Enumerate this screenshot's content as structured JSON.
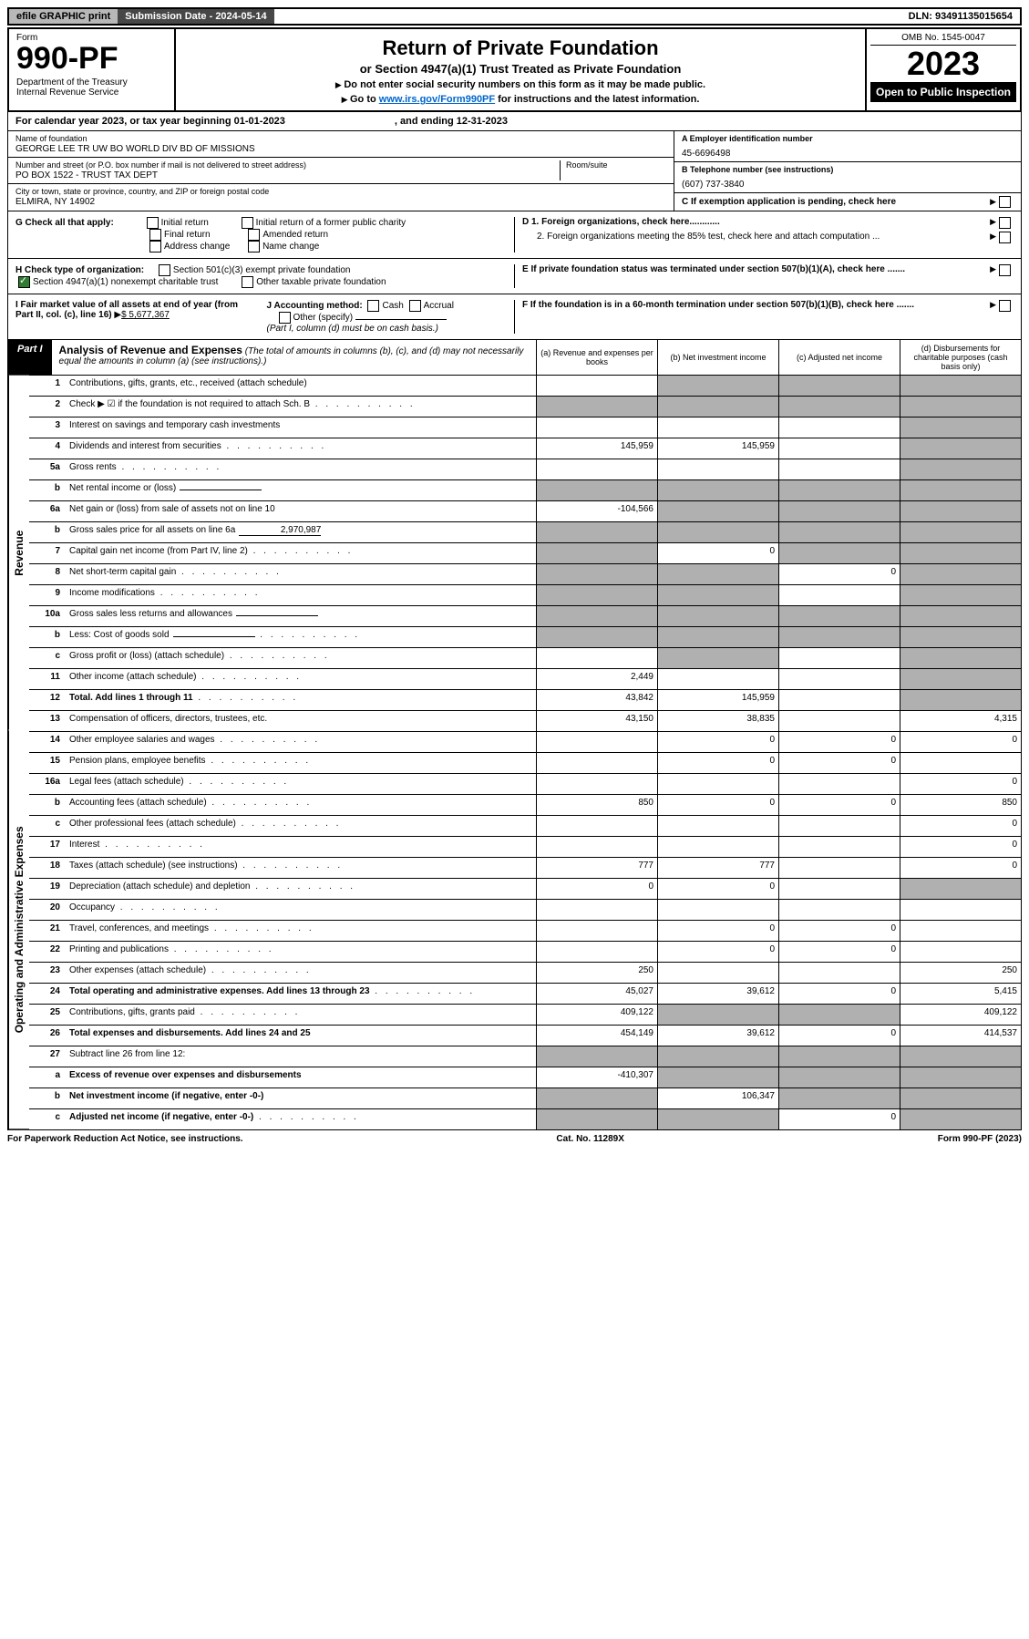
{
  "topbar": {
    "efile": "efile GRAPHIC print",
    "sub": "Submission Date - 2024-05-14",
    "dln": "DLN: 93491135015654"
  },
  "hdr": {
    "form": "Form",
    "num": "990-PF",
    "dept": "Department of the Treasury\nInternal Revenue Service",
    "title": "Return of Private Foundation",
    "sub": "or Section 4947(a)(1) Trust Treated as Private Foundation",
    "n1": "Do not enter social security numbers on this form as it may be made public.",
    "n2a": "Go to ",
    "n2l": "www.irs.gov/Form990PF",
    "n2b": " for instructions and the latest information.",
    "omb": "OMB No. 1545-0047",
    "yr": "2023",
    "insp": "Open to Public Inspection"
  },
  "cal": {
    "a": "For calendar year 2023, or tax year beginning 01-01-2023",
    "b": ", and ending 12-31-2023"
  },
  "name": {
    "lbl": "Name of foundation",
    "val": "GEORGE LEE TR UW BO WORLD DIV BD OF MISSIONS"
  },
  "addr": {
    "lbl": "Number and street (or P.O. box number if mail is not delivered to street address)",
    "room": "Room/suite",
    "val": "PO BOX 1522 - TRUST TAX DEPT"
  },
  "city": {
    "lbl": "City or town, state or province, country, and ZIP or foreign postal code",
    "val": "ELMIRA, NY  14902"
  },
  "A": {
    "lbl": "A Employer identification number",
    "val": "45-6696498"
  },
  "B": {
    "lbl": "B Telephone number (see instructions)",
    "val": "(607) 737-3840"
  },
  "C": "C If exemption application is pending, check here",
  "G": {
    "lbl": "G Check all that apply:",
    "o": [
      "Initial return",
      "Final return",
      "Address change",
      "Initial return of a former public charity",
      "Amended return",
      "Name change"
    ]
  },
  "D": {
    "d1": "D 1. Foreign organizations, check here............",
    "d2": "2. Foreign organizations meeting the 85% test, check here and attach computation ..."
  },
  "H": {
    "lbl": "H Check type of organization:",
    "o1": "Section 501(c)(3) exempt private foundation",
    "o2": "Section 4947(a)(1) nonexempt charitable trust",
    "o3": "Other taxable private foundation"
  },
  "E": "E If private foundation status was terminated under section 507(b)(1)(A), check here .......",
  "I": {
    "lbl": "I Fair market value of all assets at end of year (from Part II, col. (c), line 16)",
    "val": "$  5,677,367"
  },
  "J": {
    "lbl": "J Accounting method:",
    "o": [
      "Cash",
      "Accrual",
      "Other (specify)"
    ],
    "note": "(Part I, column (d) must be on cash basis.)"
  },
  "F": "F  If the foundation is in a 60-month termination under section 507(b)(1)(B), check here .......",
  "part": {
    "tag": "Part I",
    "tit": "Analysis of Revenue and Expenses",
    "note": "(The total of amounts in columns (b), (c), and (d) may not necessarily equal the amounts in column (a) (see instructions).)",
    "ca": "(a)   Revenue and expenses per books",
    "cb": "(b)   Net investment income",
    "cc": "(c)   Adjusted net income",
    "cd": "(d)   Disbursements for charitable purposes (cash basis only)"
  },
  "side": {
    "rev": "Revenue",
    "exp": "Operating and Administrative Expenses"
  },
  "rows": [
    {
      "n": "1",
      "d": "Contributions, gifts, grants, etc., received (attach schedule)",
      "a": "",
      "b": "g",
      "c": "g",
      "dd": "g"
    },
    {
      "n": "2",
      "d": "Check ▶ ☑ if the foundation is not required to attach Sch. B",
      "dots": 1,
      "a": "g",
      "b": "g",
      "c": "g",
      "dd": "g"
    },
    {
      "n": "3",
      "d": "Interest on savings and temporary cash investments",
      "a": "",
      "b": "",
      "c": "",
      "dd": "g"
    },
    {
      "n": "4",
      "d": "Dividends and interest from securities",
      "dots": 1,
      "a": "145,959",
      "b": "145,959",
      "c": "",
      "dd": "g"
    },
    {
      "n": "5a",
      "d": "Gross rents",
      "dots": 1,
      "a": "",
      "b": "",
      "c": "",
      "dd": "g"
    },
    {
      "n": "b",
      "d": "Net rental income or (loss)",
      "a": "g",
      "b": "g",
      "c": "g",
      "dd": "g",
      "inline": 1
    },
    {
      "n": "6a",
      "d": "Net gain or (loss) from sale of assets not on line 10",
      "a": "-104,566",
      "b": "g",
      "c": "g",
      "dd": "g"
    },
    {
      "n": "b",
      "d": "Gross sales price for all assets on line 6a",
      "inline": 1,
      "iv": "2,970,987",
      "a": "g",
      "b": "g",
      "c": "g",
      "dd": "g"
    },
    {
      "n": "7",
      "d": "Capital gain net income (from Part IV, line 2)",
      "dots": 1,
      "a": "g",
      "b": "0",
      "c": "g",
      "dd": "g"
    },
    {
      "n": "8",
      "d": "Net short-term capital gain",
      "dots": 1,
      "a": "g",
      "b": "g",
      "c": "0",
      "dd": "g"
    },
    {
      "n": "9",
      "d": "Income modifications",
      "dots": 1,
      "a": "g",
      "b": "g",
      "c": "",
      "dd": "g"
    },
    {
      "n": "10a",
      "d": "Gross sales less returns and allowances",
      "inline": 1,
      "a": "g",
      "b": "g",
      "c": "g",
      "dd": "g"
    },
    {
      "n": "b",
      "d": "Less: Cost of goods sold",
      "dots": 1,
      "inline": 1,
      "a": "g",
      "b": "g",
      "c": "g",
      "dd": "g"
    },
    {
      "n": "c",
      "d": "Gross profit or (loss) (attach schedule)",
      "dots": 1,
      "a": "",
      "b": "g",
      "c": "",
      "dd": "g"
    },
    {
      "n": "11",
      "d": "Other income (attach schedule)",
      "dots": 1,
      "a": "2,449",
      "b": "",
      "c": "",
      "dd": "g"
    },
    {
      "n": "12",
      "d": "Total. Add lines 1 through 11",
      "dots": 1,
      "bold": 1,
      "a": "43,842",
      "b": "145,959",
      "c": "",
      "dd": "g"
    },
    {
      "n": "13",
      "d": "Compensation of officers, directors, trustees, etc.",
      "a": "43,150",
      "b": "38,835",
      "c": "",
      "dd": "4,315"
    },
    {
      "n": "14",
      "d": "Other employee salaries and wages",
      "dots": 1,
      "a": "",
      "b": "0",
      "c": "0",
      "dd": "0"
    },
    {
      "n": "15",
      "d": "Pension plans, employee benefits",
      "dots": 1,
      "a": "",
      "b": "0",
      "c": "0",
      "dd": ""
    },
    {
      "n": "16a",
      "d": "Legal fees (attach schedule)",
      "dots": 1,
      "a": "",
      "b": "",
      "c": "",
      "dd": "0"
    },
    {
      "n": "b",
      "d": "Accounting fees (attach schedule)",
      "dots": 1,
      "a": "850",
      "b": "0",
      "c": "0",
      "dd": "850"
    },
    {
      "n": "c",
      "d": "Other professional fees (attach schedule)",
      "dots": 1,
      "a": "",
      "b": "",
      "c": "",
      "dd": "0"
    },
    {
      "n": "17",
      "d": "Interest",
      "dots": 1,
      "a": "",
      "b": "",
      "c": "",
      "dd": "0"
    },
    {
      "n": "18",
      "d": "Taxes (attach schedule) (see instructions)",
      "dots": 1,
      "a": "777",
      "b": "777",
      "c": "",
      "dd": "0"
    },
    {
      "n": "19",
      "d": "Depreciation (attach schedule) and depletion",
      "dots": 1,
      "a": "0",
      "b": "0",
      "c": "",
      "dd": "g"
    },
    {
      "n": "20",
      "d": "Occupancy",
      "dots": 1,
      "a": "",
      "b": "",
      "c": "",
      "dd": ""
    },
    {
      "n": "21",
      "d": "Travel, conferences, and meetings",
      "dots": 1,
      "a": "",
      "b": "0",
      "c": "0",
      "dd": ""
    },
    {
      "n": "22",
      "d": "Printing and publications",
      "dots": 1,
      "a": "",
      "b": "0",
      "c": "0",
      "dd": ""
    },
    {
      "n": "23",
      "d": "Other expenses (attach schedule)",
      "dots": 1,
      "a": "250",
      "b": "",
      "c": "",
      "dd": "250"
    },
    {
      "n": "24",
      "d": "Total operating and administrative expenses. Add lines 13 through 23",
      "dots": 1,
      "bold": 1,
      "a": "45,027",
      "b": "39,612",
      "c": "0",
      "dd": "5,415"
    },
    {
      "n": "25",
      "d": "Contributions, gifts, grants paid",
      "dots": 1,
      "a": "409,122",
      "b": "g",
      "c": "g",
      "dd": "409,122"
    },
    {
      "n": "26",
      "d": "Total expenses and disbursements. Add lines 24 and 25",
      "bold": 1,
      "a": "454,149",
      "b": "39,612",
      "c": "0",
      "dd": "414,537"
    },
    {
      "n": "27",
      "d": "Subtract line 26 from line 12:",
      "a": "g",
      "b": "g",
      "c": "g",
      "dd": "g"
    },
    {
      "n": "a",
      "d": "Excess of revenue over expenses and disbursements",
      "bold": 1,
      "a": "-410,307",
      "b": "g",
      "c": "g",
      "dd": "g"
    },
    {
      "n": "b",
      "d": "Net investment income (if negative, enter -0-)",
      "bold": 1,
      "a": "g",
      "b": "106,347",
      "c": "g",
      "dd": "g"
    },
    {
      "n": "c",
      "d": "Adjusted net income (if negative, enter -0-)",
      "dots": 1,
      "bold": 1,
      "a": "g",
      "b": "g",
      "c": "0",
      "dd": "g"
    }
  ],
  "foot": {
    "l": "For Paperwork Reduction Act Notice, see instructions.",
    "c": "Cat. No. 11289X",
    "r": "Form 990-PF (2023)"
  }
}
